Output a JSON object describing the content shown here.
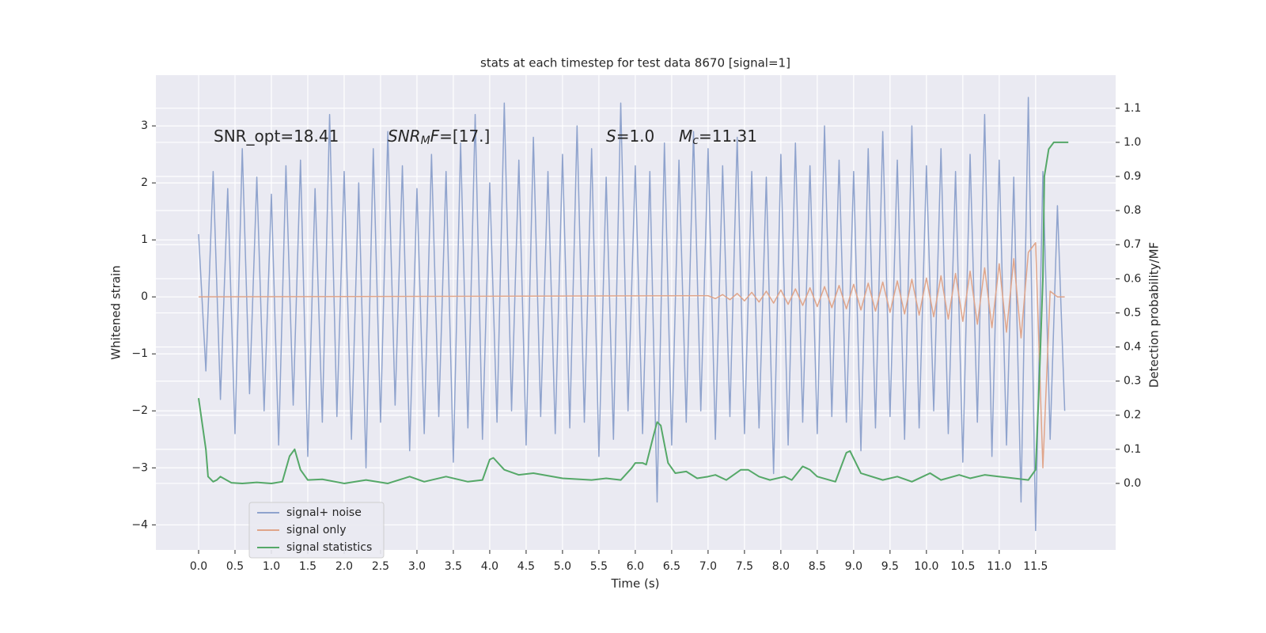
{
  "chart_data": {
    "type": "line",
    "title": "stats at each timestep for test data 8670 [signal=1]",
    "x_label": "Time (s)",
    "y_label": "Whitened strain",
    "y2_label": "Detection probability/MF",
    "xlim": [
      -0.587,
      12.6
    ],
    "ylim": [
      -4.44,
      3.89
    ],
    "y2lim": [
      -0.195,
      1.197
    ],
    "xticks": [
      {
        "value": 0,
        "label": "0.0"
      },
      0.5,
      {
        "value": 1,
        "label": "1.0"
      },
      1.5,
      {
        "value": 2,
        "label": "2.0"
      },
      2.5,
      {
        "value": 3,
        "label": "3.0"
      },
      3.5,
      {
        "value": 4,
        "label": "4.0"
      },
      4.5,
      {
        "value": 5,
        "label": "5.0"
      },
      5.5,
      {
        "value": 6,
        "label": "6.0"
      },
      6.5,
      {
        "value": 7,
        "label": "7.0"
      },
      7.5,
      {
        "value": 8,
        "label": "8.0"
      },
      8.5,
      {
        "value": 9,
        "label": "9.0"
      },
      9.5,
      {
        "value": 10,
        "label": "10.0"
      },
      10.5,
      {
        "value": 11,
        "label": "11.0"
      },
      11.5
    ],
    "yticks": [
      {
        "value": -4,
        "label": "−4"
      },
      {
        "value": -3,
        "label": "−3"
      },
      {
        "value": -2,
        "label": "−2"
      },
      {
        "value": -1,
        "label": "−1"
      },
      0,
      1,
      2,
      3
    ],
    "y2ticks": [
      {
        "value": 0,
        "label": "0.0"
      },
      0.1,
      0.2,
      0.3,
      0.4,
      0.5,
      0.6,
      0.7,
      0.8,
      0.9,
      {
        "value": 1,
        "label": "1.0"
      },
      1.1
    ],
    "grid": true,
    "legend": "lower left",
    "annotations": [
      {
        "parts": [
          {
            "text": "SNR_opt=18.41",
            "style": "normal"
          }
        ]
      },
      {
        "parts": [
          {
            "text": "SNR",
            "style": "italic"
          },
          {
            "text": "M",
            "style": "sub"
          },
          {
            "text": "F",
            "style": "italic"
          },
          {
            "text": "=[17.]",
            "style": "normal"
          }
        ]
      },
      {
        "parts": [
          {
            "text": "S",
            "style": "italic"
          },
          {
            "text": "=1.0",
            "style": "normal"
          }
        ]
      },
      {
        "parts": [
          {
            "text": "M",
            "style": "italic"
          },
          {
            "text": "c",
            "style": "sub"
          },
          {
            "text": "=11.31",
            "style": "normal"
          }
        ]
      }
    ],
    "series": [
      {
        "name": "signal+ noise",
        "color": "#8fa3cd",
        "axis": "y",
        "x": [
          0.0,
          0.1,
          0.2,
          0.3,
          0.4,
          0.5,
          0.6,
          0.7,
          0.8,
          0.9,
          1.0,
          1.1,
          1.2,
          1.3,
          1.4,
          1.5,
          1.6,
          1.7,
          1.8,
          1.9,
          2.0,
          2.1,
          2.2,
          2.3,
          2.4,
          2.5,
          2.6,
          2.7,
          2.8,
          2.9,
          3.0,
          3.1,
          3.2,
          3.3,
          3.4,
          3.5,
          3.6,
          3.7,
          3.8,
          3.9,
          4.0,
          4.1,
          4.2,
          4.3,
          4.4,
          4.5,
          4.6,
          4.7,
          4.8,
          4.9,
          5.0,
          5.1,
          5.2,
          5.3,
          5.4,
          5.5,
          5.6,
          5.7,
          5.8,
          5.9,
          6.0,
          6.1,
          6.2,
          6.3,
          6.4,
          6.5,
          6.6,
          6.7,
          6.8,
          6.9,
          7.0,
          7.1,
          7.2,
          7.3,
          7.4,
          7.5,
          7.6,
          7.7,
          7.8,
          7.9,
          8.0,
          8.1,
          8.2,
          8.3,
          8.4,
          8.5,
          8.6,
          8.7,
          8.8,
          8.9,
          9.0,
          9.1,
          9.2,
          9.3,
          9.4,
          9.5,
          9.6,
          9.7,
          9.8,
          9.9,
          10.0,
          10.1,
          10.2,
          10.3,
          10.4,
          10.5,
          10.6,
          10.7,
          10.8,
          10.9,
          11.0,
          11.1,
          11.2,
          11.3,
          11.4,
          11.5,
          11.6,
          11.7,
          11.8,
          11.9
        ],
        "values": [
          1.1,
          -1.3,
          2.2,
          -1.8,
          1.9,
          -2.4,
          2.6,
          -1.7,
          2.1,
          -2.0,
          1.8,
          -2.6,
          2.3,
          -1.9,
          2.4,
          -2.8,
          1.9,
          -2.2,
          3.2,
          -2.1,
          2.2,
          -2.5,
          2.0,
          -3.0,
          2.6,
          -2.2,
          2.9,
          -1.9,
          2.3,
          -2.7,
          1.9,
          -2.4,
          2.5,
          -2.1,
          2.2,
          -2.9,
          2.7,
          -2.3,
          3.2,
          -2.5,
          2.0,
          -2.2,
          3.4,
          -2.0,
          2.4,
          -2.6,
          2.8,
          -2.1,
          2.2,
          -2.4,
          2.5,
          -2.3,
          3.0,
          -2.2,
          2.6,
          -2.8,
          2.1,
          -2.5,
          3.4,
          -2.0,
          2.3,
          -2.4,
          2.2,
          -3.6,
          2.7,
          -2.6,
          2.4,
          -2.2,
          2.9,
          -2.0,
          2.6,
          -2.5,
          2.3,
          -2.1,
          2.8,
          -2.4,
          2.2,
          -2.3,
          2.1,
          -3.1,
          2.5,
          -2.6,
          2.7,
          -2.2,
          2.3,
          -2.4,
          3.0,
          -2.1,
          2.4,
          -2.2,
          2.2,
          -2.7,
          2.6,
          -2.3,
          2.9,
          -2.1,
          2.4,
          -2.5,
          3.0,
          -2.3,
          2.3,
          -2.0,
          2.6,
          -2.4,
          2.2,
          -2.9,
          2.5,
          -2.2,
          3.2,
          -2.8,
          2.4,
          -2.6,
          2.1,
          -3.6,
          3.5,
          -4.1,
          2.2,
          -2.5,
          1.6,
          -2.0
        ]
      },
      {
        "name": "signal only",
        "color": "#e0a58a",
        "axis": "y",
        "x": [
          0.0,
          7.0,
          7.1,
          7.2,
          7.3,
          7.4,
          7.5,
          7.6,
          7.7,
          7.8,
          7.9,
          8.0,
          8.1,
          8.2,
          8.3,
          8.4,
          8.5,
          8.6,
          8.7,
          8.8,
          8.9,
          9.0,
          9.1,
          9.2,
          9.3,
          9.4,
          9.5,
          9.6,
          9.7,
          9.8,
          9.9,
          10.0,
          10.1,
          10.2,
          10.3,
          10.4,
          10.5,
          10.6,
          10.7,
          10.8,
          10.9,
          11.0,
          11.1,
          11.2,
          11.3,
          11.4,
          11.5,
          11.6,
          11.7,
          11.8,
          11.9
        ],
        "values": [
          0.0,
          0.02,
          -0.03,
          0.04,
          -0.05,
          0.06,
          -0.07,
          0.08,
          -0.09,
          0.1,
          -0.11,
          0.12,
          -0.13,
          0.14,
          -0.15,
          0.16,
          -0.17,
          0.18,
          -0.19,
          0.2,
          -0.21,
          0.22,
          -0.23,
          0.24,
          -0.25,
          0.26,
          -0.27,
          0.28,
          -0.3,
          0.31,
          -0.32,
          0.33,
          -0.35,
          0.37,
          -0.39,
          0.41,
          -0.43,
          0.45,
          -0.48,
          0.51,
          -0.54,
          0.58,
          -0.62,
          0.67,
          -0.72,
          0.78,
          0.95,
          -3.0,
          0.1,
          0.0,
          0.0
        ]
      },
      {
        "name": "signal statistics",
        "color": "#55a868",
        "axis": "y2",
        "x": [
          0.0,
          0.1,
          0.13,
          0.2,
          0.25,
          0.3,
          0.45,
          0.6,
          0.8,
          1.0,
          1.15,
          1.25,
          1.32,
          1.4,
          1.5,
          1.7,
          2.0,
          2.3,
          2.6,
          2.9,
          3.1,
          3.4,
          3.7,
          3.9,
          4.0,
          4.05,
          4.2,
          4.4,
          4.6,
          5.0,
          5.4,
          5.6,
          5.8,
          5.95,
          6.0,
          6.1,
          6.15,
          6.25,
          6.3,
          6.35,
          6.45,
          6.55,
          6.7,
          6.85,
          7.0,
          7.1,
          7.25,
          7.45,
          7.55,
          7.7,
          7.85,
          8.05,
          8.15,
          8.3,
          8.4,
          8.5,
          8.75,
          8.9,
          8.95,
          9.1,
          9.4,
          9.6,
          9.8,
          9.95,
          10.05,
          10.2,
          10.45,
          10.6,
          10.8,
          11.0,
          11.4,
          11.5,
          11.55,
          11.6,
          11.62,
          11.68,
          11.75,
          11.95
        ],
        "values": [
          0.25,
          0.1,
          0.02,
          0.005,
          0.01,
          0.02,
          0.002,
          0.0,
          0.003,
          0.0,
          0.005,
          0.08,
          0.1,
          0.04,
          0.01,
          0.012,
          0.0,
          0.01,
          0.0,
          0.02,
          0.005,
          0.02,
          0.005,
          0.01,
          0.07,
          0.075,
          0.04,
          0.025,
          0.03,
          0.015,
          0.01,
          0.015,
          0.01,
          0.045,
          0.06,
          0.06,
          0.055,
          0.14,
          0.18,
          0.17,
          0.06,
          0.03,
          0.035,
          0.015,
          0.02,
          0.025,
          0.01,
          0.04,
          0.04,
          0.02,
          0.01,
          0.02,
          0.01,
          0.05,
          0.04,
          0.02,
          0.005,
          0.09,
          0.095,
          0.03,
          0.01,
          0.02,
          0.005,
          0.02,
          0.03,
          0.01,
          0.025,
          0.015,
          0.025,
          0.02,
          0.01,
          0.04,
          0.3,
          0.6,
          0.9,
          0.98,
          1.0,
          1.0
        ]
      }
    ]
  }
}
